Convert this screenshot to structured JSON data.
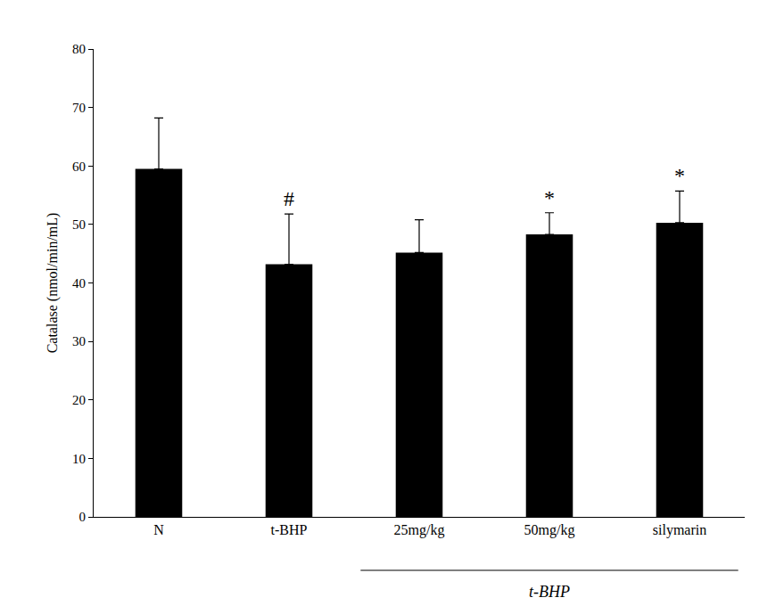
{
  "chart_data": {
    "type": "bar",
    "y_label": "Catalase (nmol/min/mL)",
    "categories": [
      "N",
      "t-BHP",
      "25mg/kg",
      "50mg/kg",
      "silymarin"
    ],
    "values": [
      59.5,
      43.2,
      45.2,
      48.3,
      50.3
    ],
    "errors": [
      8.7,
      8.6,
      5.6,
      3.7,
      5.4
    ],
    "color": "#000000",
    "ylim": [
      0,
      80
    ],
    "yticks": [
      0,
      10,
      20,
      30,
      40,
      50,
      60,
      70,
      80
    ],
    "grid": false,
    "annotations": [
      {
        "category": "t-BHP",
        "text": "#"
      },
      {
        "category": "50mg/kg",
        "text": "*"
      },
      {
        "category": "silymarin",
        "text": "*"
      }
    ],
    "group_labels": [
      {
        "text": "t-BHP",
        "categories": [
          "25mg/kg",
          "50mg/kg",
          "silymarin"
        ]
      }
    ]
  }
}
